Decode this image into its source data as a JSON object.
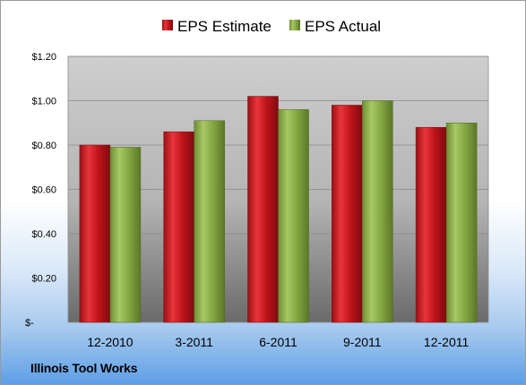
{
  "company": "Illinois Tool Works",
  "chart_data": {
    "type": "bar",
    "categories": [
      "12-2010",
      "3-2011",
      "6-2011",
      "9-2011",
      "12-2011"
    ],
    "series": [
      {
        "name": "EPS Estimate",
        "values": [
          0.8,
          0.86,
          1.02,
          0.98,
          0.88
        ],
        "color": "#c0141b"
      },
      {
        "name": "EPS Actual",
        "values": [
          0.79,
          0.91,
          0.96,
          1.0,
          0.9
        ],
        "color": "#86a844"
      }
    ],
    "ylim": [
      0,
      1.2
    ],
    "yticks": [
      0,
      0.2,
      0.4,
      0.6,
      0.8,
      1.0,
      1.2
    ],
    "ytick_labels": [
      "$-",
      "$0.20",
      "$0.40",
      "$0.60",
      "$0.80",
      "$1.00",
      "$1.20"
    ],
    "grid": true,
    "legend_position": "top",
    "xlabel": "",
    "ylabel": ""
  }
}
